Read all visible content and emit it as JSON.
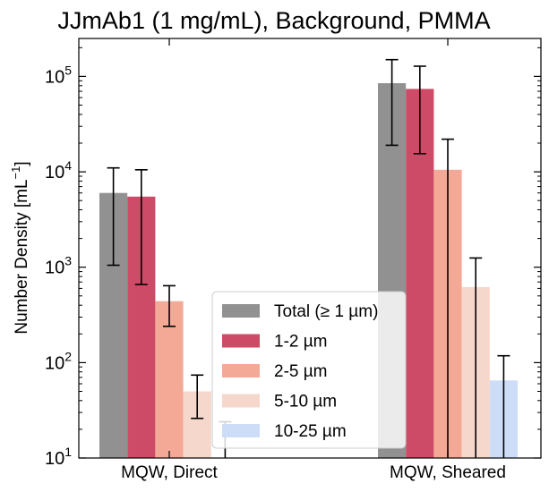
{
  "chart_data": {
    "type": "bar",
    "title": "JJmAb1 (1 mg/mL), Background, PMMA",
    "ylabel": "Number Density [mL",
    "ylabel_sup": "−1",
    "ylabel_close": "]",
    "yscale": "log",
    "ylim": [
      10,
      250000
    ],
    "y_ticks": [
      {
        "value": 10,
        "base": "10",
        "exp": "1"
      },
      {
        "value": 100,
        "base": "10",
        "exp": "2"
      },
      {
        "value": 1000,
        "base": "10",
        "exp": "3"
      },
      {
        "value": 10000,
        "base": "10",
        "exp": "4"
      },
      {
        "value": 100000,
        "base": "10",
        "exp": "5"
      }
    ],
    "categories": [
      "MQW, Direct",
      "MQW, Sheared"
    ],
    "series": [
      {
        "name": "Total (≥  1 µm)",
        "color": "#919191",
        "values": [
          6000,
          85000
        ],
        "err_low": [
          1050,
          19000
        ],
        "err_high": [
          11000,
          150000
        ]
      },
      {
        "name": "1-2 µm",
        "color": "#cd4b66",
        "values": [
          5500,
          74000
        ],
        "err_low": [
          660,
          15500
        ],
        "err_high": [
          10500,
          128000
        ]
      },
      {
        "name": "2-5 µm",
        "color": "#f4a997",
        "values": [
          440,
          10500
        ],
        "err_low": [
          240,
          0
        ],
        "err_high": [
          640,
          22000
        ]
      },
      {
        "name": "5-10 µm",
        "color": "#f5d8cb",
        "values": [
          50,
          620
        ],
        "err_low": [
          26,
          0
        ],
        "err_high": [
          74,
          1250
        ]
      },
      {
        "name": "10-25 µm",
        "color": "#cddcf7",
        "values": [
          0,
          65
        ],
        "err_low": [
          0,
          0
        ],
        "err_high": [
          24,
          118
        ]
      }
    ],
    "legend_position": "lower-center",
    "grid": false
  }
}
